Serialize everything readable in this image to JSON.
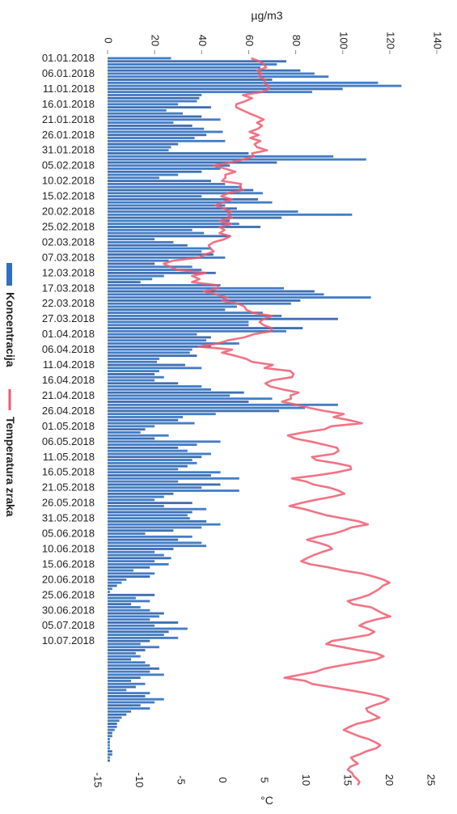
{
  "chart_data": {
    "type": "bar",
    "orientation": "horizontal",
    "primary_axis_label": "µg/m3",
    "secondary_axis_label": "°C",
    "primary_range": [
      0,
      140
    ],
    "primary_ticks": [
      0,
      20,
      40,
      60,
      80,
      100,
      120,
      140
    ],
    "secondary_range": [
      -15,
      25
    ],
    "secondary_ticks": [
      -15,
      -10,
      -5,
      0,
      5,
      10,
      15,
      20,
      25
    ],
    "date_labels": [
      "01.01.2018",
      "06.01.2018",
      "11.01.2018",
      "16.01.2018",
      "21.01.2018",
      "26.01.2018",
      "31.01.2018",
      "05.02.2018",
      "10.02.2018",
      "15.02.2018",
      "20.02.2018",
      "25.02.2018",
      "02.03.2018",
      "07.03.2018",
      "12.03.2018",
      "17.03.2018",
      "22.03.2018",
      "27.03.2018",
      "01.04.2018",
      "06.04.2018",
      "11.04.2018",
      "16.04.2018",
      "21.04.2018",
      "26.04.2018",
      "01.05.2018",
      "06.05.2018",
      "11.05.2018",
      "16.05.2018",
      "21.05.2018",
      "26.05.2018",
      "31.05.2018",
      "05.06.2018",
      "10.06.2018",
      "15.06.2018",
      "20.06.2018",
      "25.06.2018",
      "30.06.2018",
      "05.07.2018",
      "10.07.2018"
    ],
    "legend": [
      "Koncentracija",
      "Temperatura zraka"
    ],
    "legend_position": "right",
    "series": [
      {
        "name": "Koncentracija",
        "axis": "µg/m3",
        "color": "#2f6fc0",
        "values": [
          27,
          76,
          72,
          65,
          82,
          88,
          94,
          70,
          115,
          125,
          100,
          87,
          40,
          39,
          38,
          30,
          44,
          25,
          32,
          40,
          48,
          28,
          36,
          41,
          49,
          42,
          37,
          50,
          30,
          27,
          26,
          60,
          96,
          110,
          72,
          52,
          48,
          40,
          30,
          22,
          44,
          50,
          57,
          62,
          66,
          40,
          64,
          70,
          50,
          55,
          81,
          104,
          74,
          52,
          56,
          65,
          36,
          41,
          52,
          20,
          28,
          34,
          44,
          40,
          45,
          50,
          26,
          20,
          36,
          40,
          46,
          24,
          19,
          14,
          48,
          75,
          88,
          92,
          112,
          82,
          78,
          55,
          50,
          66,
          74,
          98,
          60,
          60,
          83,
          76,
          38,
          44,
          42,
          56,
          44,
          36,
          35,
          38,
          22,
          21,
          33,
          40,
          22,
          20,
          24,
          20,
          30,
          40,
          44,
          58,
          52,
          70,
          60,
          98,
          84,
          73,
          46,
          32,
          30,
          37,
          20,
          16,
          14,
          26,
          20,
          48,
          38,
          30,
          34,
          44,
          40,
          36,
          38,
          34,
          30,
          48,
          44,
          56,
          30,
          48,
          40,
          56,
          28,
          24,
          20,
          36,
          24,
          42,
          36,
          34,
          35,
          42,
          48,
          40,
          28,
          16,
          36,
          30,
          40,
          42,
          28,
          20,
          24,
          27,
          20,
          26,
          18,
          11,
          20,
          18,
          8,
          6,
          4,
          2,
          1,
          20,
          12,
          18,
          10,
          14,
          18,
          24,
          22,
          18,
          30,
          20,
          34,
          26,
          24,
          30,
          18,
          14,
          22,
          16,
          12,
          14,
          10,
          16,
          18,
          22,
          18,
          24,
          14,
          10,
          16,
          12,
          8,
          18,
          16,
          24,
          20,
          14,
          18,
          10,
          8,
          6,
          5,
          4,
          4,
          3,
          2,
          2,
          1,
          1,
          1,
          1,
          2,
          2,
          1,
          1
        ]
      },
      {
        "name": "Temperatura zraka",
        "axis": "°C",
        "color": "#ee5a6e",
        "values": [
          3.5,
          4.5,
          5,
          5.3,
          4.2,
          4.7,
          4.4,
          5.2,
          5,
          5.6,
          5.6,
          4.8,
          2.5,
          3.6,
          2.8,
          1.7,
          1.7,
          2.5,
          3.3,
          4.2,
          5,
          4.2,
          4.8,
          4.3,
          3.3,
          4.4,
          3.4,
          4.6,
          3.9,
          4.2,
          5.4,
          3.6,
          3.8,
          2.5,
          1,
          -1,
          0.4,
          1.6,
          0.4,
          0.4,
          0,
          2.3,
          2.1,
          2.5,
          0.7,
          -0.1,
          1.2,
          0.1,
          -0.8,
          0.2,
          1.1,
          0.6,
          1.2,
          -0.3,
          1.1,
          -0.3,
          0.3,
          -0.3,
          1,
          0.3,
          -1,
          -1.6,
          -1.4,
          -1,
          -2.1,
          -2.8,
          -5.9,
          -7,
          -6.2,
          -5.4,
          -2,
          -3.6,
          -2.7,
          -3.6,
          -0.5,
          -0.5,
          -2.2,
          -0.7,
          0.6,
          0,
          1.9,
          2.7,
          2.9,
          3.7,
          6,
          5,
          4.5,
          5,
          6,
          5.9,
          3.8,
          2.7,
          0.7,
          -0.5,
          -2.8,
          1.2,
          0,
          1.6,
          2.9,
          3.6,
          6.1,
          5.1,
          8.2,
          8.6,
          8.4,
          6,
          5.2,
          5.8,
          7.3,
          9.2,
          8.2,
          8.3,
          7.2,
          9,
          10.5,
          12.3,
          14.6,
          13.4,
          15.3,
          16.8,
          13.1,
          12.3,
          9.8,
          7.9,
          8.8,
          10.7,
          12.3,
          13.8,
          14,
          13.4,
          10.8,
          11.3,
          13.6,
          15.4,
          15.5,
          13.8,
          11.4,
          8.4,
          10.1,
          11,
          12.9,
          14,
          14.7,
          13.2,
          11.2,
          9.5,
          8.1,
          9.9,
          11.2,
          12.5,
          14.5,
          16.4,
          17.5,
          15.5,
          14.6,
          13.4,
          11.5,
          10.2,
          11.6,
          12.8,
          13.2,
          12,
          11,
          10.2,
          9.5,
          10.6,
          12.8,
          14.5,
          16.8,
          18.2,
          19.4,
          20.1,
          19.3,
          18.9,
          18.3,
          17.6,
          16.5,
          15.1,
          15.7,
          17.9,
          18.6,
          19.3,
          20.2,
          18.5,
          17.2,
          16.5,
          17.5,
          18.3,
          17.6,
          15.5,
          13.2,
          12.5,
          14.5,
          16.3,
          18.5,
          19.4,
          18.5,
          16.4,
          14.2,
          12.3,
          11.3,
          9.4,
          7.5,
          10,
          10.8,
          13,
          15.2,
          17.3,
          19,
          20,
          19.4,
          18.2,
          17.3,
          17.5,
          18.2,
          18.9,
          17.8,
          16.2,
          15.3,
          14.6,
          15.5,
          16.4,
          17.6,
          18.4,
          19,
          18.5,
          17.3,
          16.5,
          15.5,
          15.8,
          16.3,
          15.4,
          15.1,
          15.6,
          15.8,
          16.2,
          16.5,
          16.3
        ]
      }
    ]
  }
}
